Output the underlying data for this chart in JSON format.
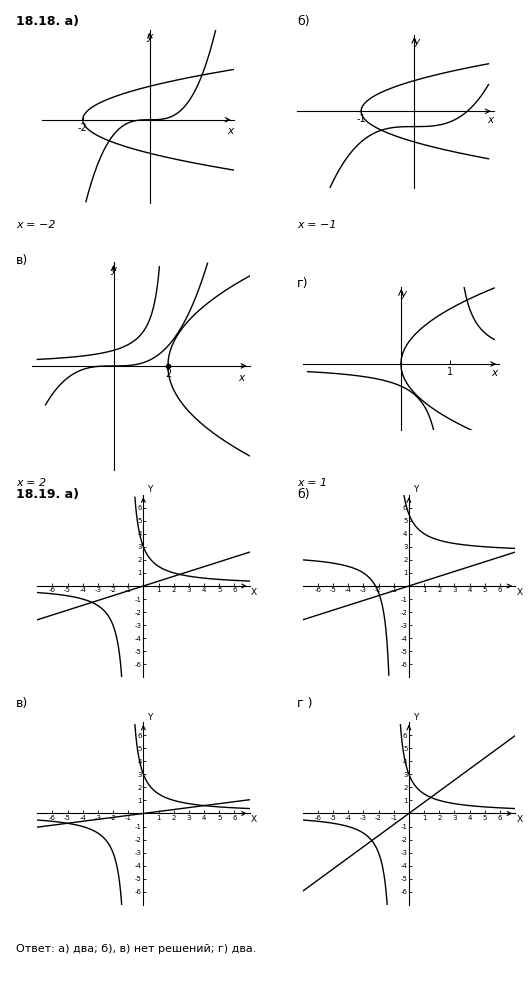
{
  "title_a": "18.18. а)",
  "label_b": "б)",
  "label_v": "в)",
  "label_g": "г)",
  "xeq_m2": "x = −2",
  "xeq_m1": "x = −1",
  "xeq_2": "x = 2",
  "xeq_1": "x = 1",
  "title_1819a": "18.19. а)",
  "label_1819b": "б)",
  "label_1819v": "в)",
  "label_1819g": "г )",
  "answer": "Ответ: а) два; б), в) нет решений; г) два.",
  "bg_color": "#ffffff"
}
